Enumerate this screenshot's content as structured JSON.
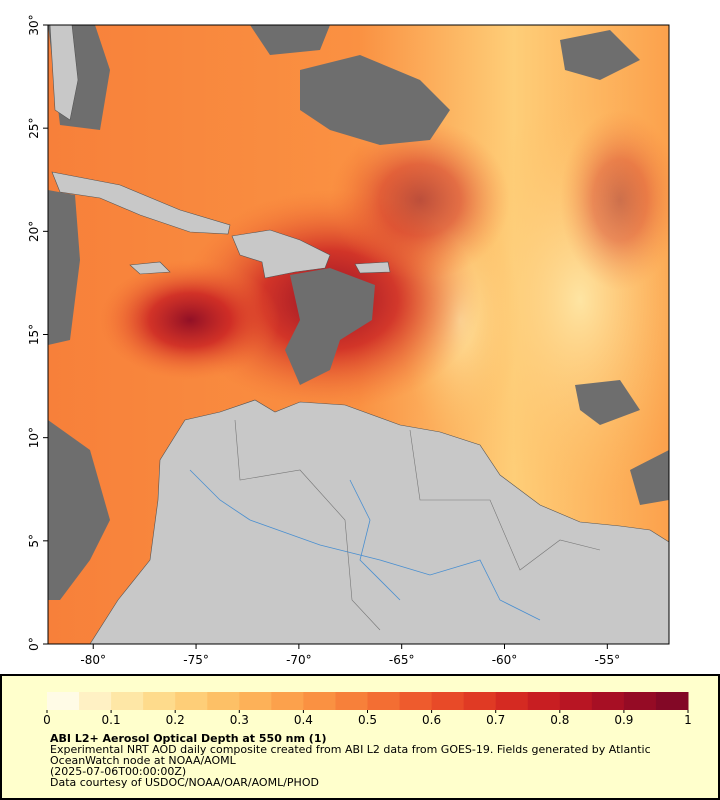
{
  "map": {
    "xlim": [
      -82.2,
      -52.0
    ],
    "ylim": [
      0,
      30
    ],
    "xticks": [
      {
        "value": -80,
        "label": "-80°"
      },
      {
        "value": -75,
        "label": "-75°"
      },
      {
        "value": -70,
        "label": "-70°"
      },
      {
        "value": -65,
        "label": "-65°"
      },
      {
        "value": -60,
        "label": "-60°"
      },
      {
        "value": -55,
        "label": "-55°"
      }
    ],
    "yticks": [
      {
        "value": 0,
        "label": "0°"
      },
      {
        "value": 5,
        "label": "5°"
      },
      {
        "value": 10,
        "label": "10°"
      },
      {
        "value": 15,
        "label": "15°"
      },
      {
        "value": 20,
        "label": "20°"
      },
      {
        "value": 25,
        "label": "25°"
      },
      {
        "value": 30,
        "label": "30°"
      }
    ]
  },
  "colorbar": {
    "lim": [
      0,
      1
    ],
    "ticks": [
      0,
      0.1,
      0.2,
      0.3,
      0.4,
      0.5,
      0.6,
      0.7,
      0.8,
      0.9,
      1
    ],
    "colors": [
      "#fffbe6",
      "#fff1c4",
      "#fee7a6",
      "#fedb8c",
      "#fece78",
      "#fdc066",
      "#fdb158",
      "#fca14c",
      "#fa9142",
      "#f7803a",
      "#f36e33",
      "#ee5b2d",
      "#e84a28",
      "#e03a24",
      "#d52a22",
      "#c81e22",
      "#b81523",
      "#a70f24",
      "#950b25",
      "#830826"
    ]
  },
  "caption": {
    "title": "ABI L2+ Aerosol Optical Depth at 550 nm (1)",
    "description": "Experimental NRT AOD daily composite created from ABI L2 data from GOES-19. Fields generated by Atlantic OceanWatch node at NOAA/AOML",
    "timestamp": "(2025-07-06T00:00:00Z)",
    "credit": "Data courtesy of USDOC/NOAA/OAR/AOML/PHOD"
  }
}
